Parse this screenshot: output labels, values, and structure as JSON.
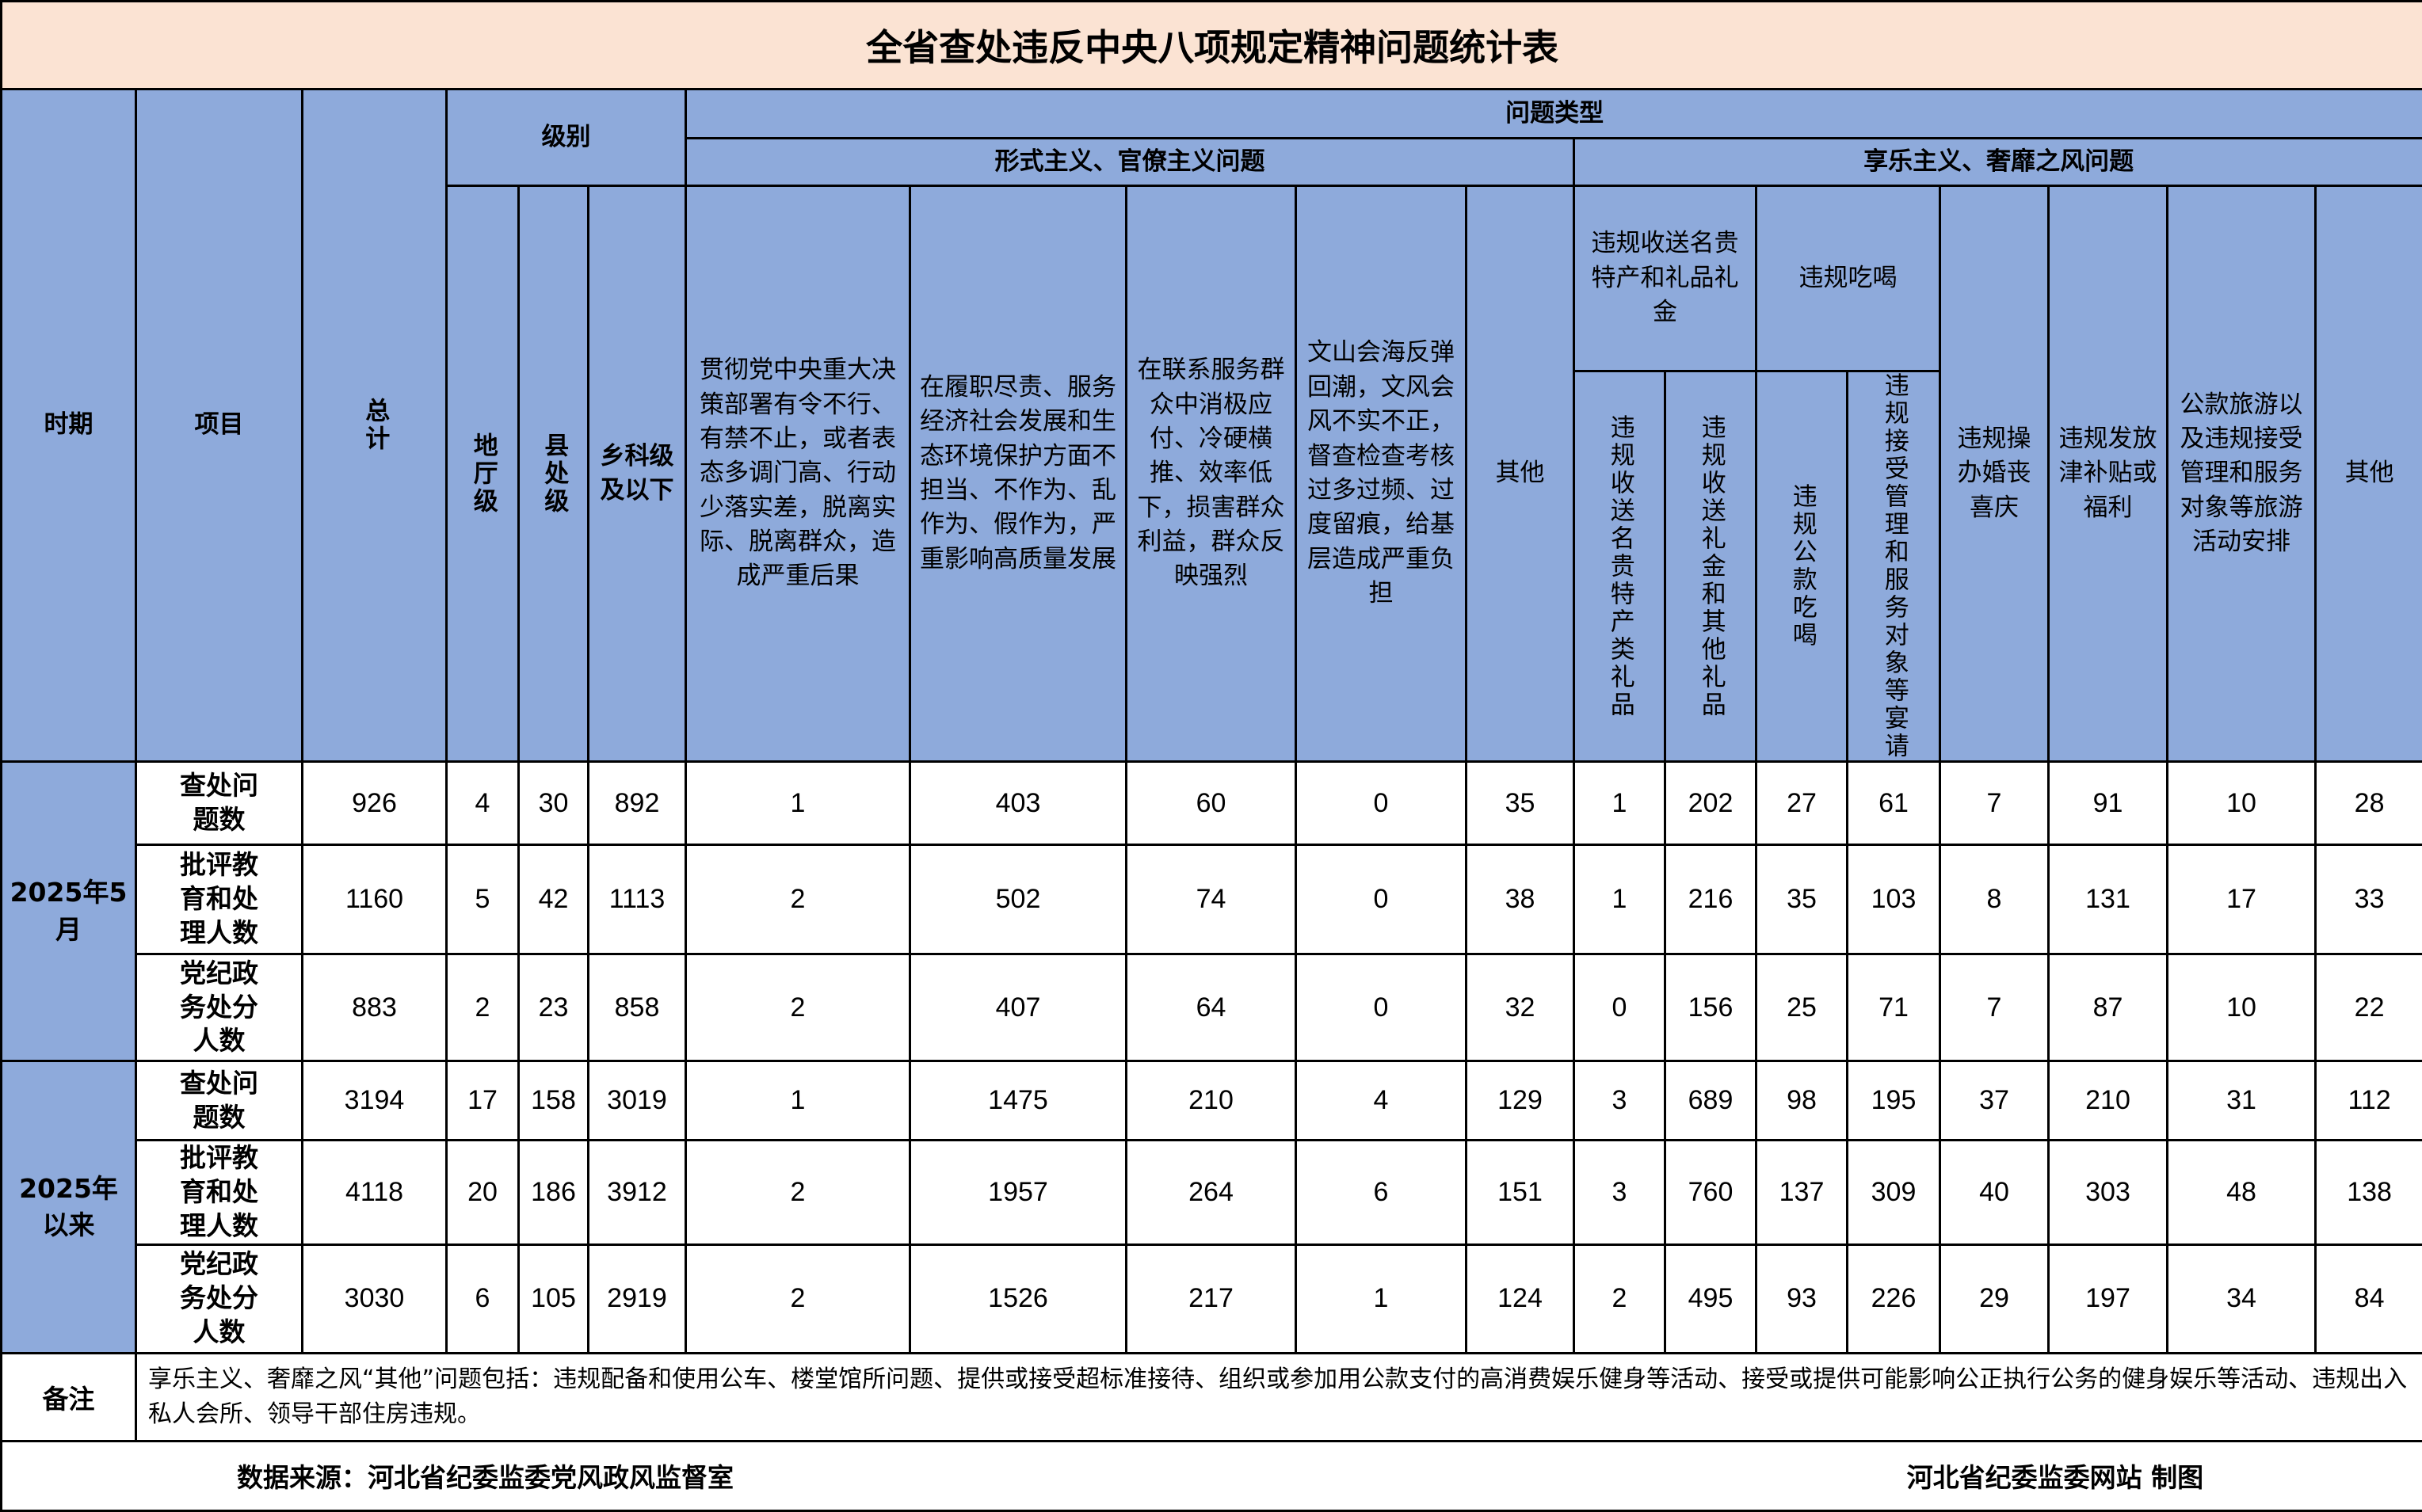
{
  "title": "全省查处违反中央八项规定精神问题统计表",
  "header": {
    "period": "时期",
    "item": "项目",
    "total": "总计",
    "level": "级别",
    "levels": [
      "地厅级",
      "县处级",
      "乡科级及以下"
    ],
    "problem_type": "问题类型",
    "formalism": "形式主义、官僚主义问题",
    "formalism_cols": [
      "贯彻党中央重大决策部署有令不行、有禁不止，或者表态多调门高、行动少落实差，脱离实际、脱离群众，造成严重后果",
      "在履职尽责、服务经济社会发展和生态环境保护方面不担当、不作为、乱作为、假作为，严重影响高质量发展",
      "在联系服务群众中消极应付、冷硬横推、效率低下，损害群众利益，群众反映强烈",
      "文山会海反弹回潮，文风会风不实不正，督查检查考核过多过频、过度留痕，给基层造成严重负担",
      "其他"
    ],
    "hedonism": "享乐主义、奢靡之风问题",
    "gifts_group": "违规收送名贵特产和礼品礼金",
    "gifts_cols": [
      "违规收送名贵特产类礼品",
      "违规收送礼金和其他礼品"
    ],
    "dining_group": "违规吃喝",
    "dining_cols": [
      "违规公款吃喝",
      "违规接受管理和服务对象等宴请"
    ],
    "hedonism_cols": [
      "违规操办婚丧喜庆",
      "违规发放津补贴或福利",
      "公款旅游以及违规接受管理和服务对象等旅游活动安排",
      "其他"
    ]
  },
  "groups": [
    {
      "period": "2025年5月",
      "rows": [
        {
          "item": "查处问题数",
          "values": [
            "926",
            "4",
            "30",
            "892",
            "1",
            "403",
            "60",
            "0",
            "35",
            "1",
            "202",
            "27",
            "61",
            "7",
            "91",
            "10",
            "28"
          ]
        },
        {
          "item": "批评教育和处理人数",
          "values": [
            "1160",
            "5",
            "42",
            "1113",
            "2",
            "502",
            "74",
            "0",
            "38",
            "1",
            "216",
            "35",
            "103",
            "8",
            "131",
            "17",
            "33"
          ]
        },
        {
          "item": "党纪政务处分人数",
          "values": [
            "883",
            "2",
            "23",
            "858",
            "2",
            "407",
            "64",
            "0",
            "32",
            "0",
            "156",
            "25",
            "71",
            "7",
            "87",
            "10",
            "22"
          ]
        }
      ]
    },
    {
      "period": "2025年以来",
      "rows": [
        {
          "item": "查处问题数",
          "values": [
            "3194",
            "17",
            "158",
            "3019",
            "1",
            "1475",
            "210",
            "4",
            "129",
            "3",
            "689",
            "98",
            "195",
            "37",
            "210",
            "31",
            "112"
          ]
        },
        {
          "item": "批评教育和处理人数",
          "values": [
            "4118",
            "20",
            "186",
            "3912",
            "2",
            "1957",
            "264",
            "6",
            "151",
            "3",
            "760",
            "137",
            "309",
            "40",
            "303",
            "48",
            "138"
          ]
        },
        {
          "item": "党纪政务处分人数",
          "values": [
            "3030",
            "6",
            "105",
            "2919",
            "2",
            "1526",
            "217",
            "1",
            "124",
            "2",
            "495",
            "93",
            "226",
            "29",
            "197",
            "34",
            "84"
          ]
        }
      ]
    }
  ],
  "note": {
    "label": "备注",
    "text": "享乐主义、奢靡之风“其他”问题包括：违规配备和使用公车、楼堂馆所问题、提供或接受超标准接待、组织或参加用公款支付的高消费娱乐健身等活动、接受或提供可能影响公正执行公务的健身娱乐等活动、违规出入私人会所、领导干部住房违规。"
  },
  "footer": {
    "source": "数据来源：河北省纪委监委党风政风监督室",
    "credit": "河北省纪委监委网站  制图"
  },
  "colors": {
    "header_bg": "#8eaadb",
    "title_bg": "#fbe3d3"
  }
}
